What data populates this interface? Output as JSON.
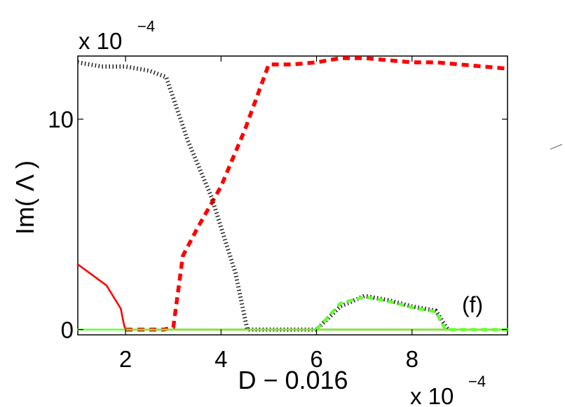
{
  "chart_data": {
    "type": "line",
    "title": "",
    "xlabel": "D − 0.016",
    "ylabel": "Im( Λ )",
    "x_scale_label": "x 10",
    "x_scale_exp": "−4",
    "y_scale_label": "x 10",
    "y_scale_exp": "−4",
    "panel_label": "(f)",
    "xlim": [
      1,
      10
    ],
    "ylim": [
      -0.25,
      13
    ],
    "xticks": [
      2,
      4,
      6,
      8
    ],
    "xtick_labels": [
      "2",
      "4",
      "6",
      "8"
    ],
    "yticks": [
      0,
      10
    ],
    "ytick_labels": [
      "0",
      "10"
    ],
    "grid": false,
    "series": [
      {
        "style": "thick-dashed",
        "color": "#ff0000",
        "x": [
          2.0,
          2.2,
          2.5,
          2.8,
          3.0,
          3.2,
          3.5,
          4.0,
          4.5,
          5.0,
          5.5,
          6.0,
          6.5,
          7.0,
          7.5,
          8.0,
          8.5,
          9.0,
          9.5,
          10.0
        ],
        "y": [
          0.0,
          0.0,
          0.0,
          0.0,
          0.1,
          3.5,
          4.8,
          6.8,
          9.5,
          12.6,
          12.6,
          12.7,
          12.9,
          12.9,
          12.8,
          12.7,
          12.7,
          12.6,
          12.5,
          12.4
        ]
      },
      {
        "style": "dotted",
        "color": "#222222",
        "x": [
          1.0,
          1.5,
          2.0,
          2.5,
          2.85,
          3.3,
          3.8,
          4.3,
          4.55,
          5.0,
          5.5,
          6.0,
          6.5,
          7.0,
          7.5,
          8.0,
          8.5,
          8.75
        ],
        "y": [
          12.7,
          12.5,
          12.5,
          12.3,
          12.0,
          9.0,
          6.3,
          2.7,
          0.0,
          0.0,
          0.0,
          0.0,
          1.1,
          1.6,
          1.4,
          1.1,
          0.9,
          0.0
        ]
      },
      {
        "style": "solid",
        "color": "#ff0000",
        "x": [
          1.0,
          1.6,
          1.9,
          1.97,
          2.0,
          3.0,
          4.0,
          5.0,
          6.0,
          7.0,
          8.0,
          9.0,
          10.0
        ],
        "y": [
          3.1,
          2.1,
          1.0,
          0.2,
          0.0,
          0.0,
          0.0,
          0.0,
          0.0,
          0.0,
          0.0,
          0.0,
          0.0
        ]
      },
      {
        "style": "solid",
        "color": "#66ff33",
        "x": [
          1.0,
          10.0
        ],
        "y": [
          0.0,
          0.0
        ]
      },
      {
        "style": "dashed",
        "color": "#66ff33",
        "x": [
          6.0,
          6.5,
          7.0,
          7.5,
          8.0,
          8.5,
          8.7,
          9.0,
          9.5,
          10.0
        ],
        "y": [
          0.0,
          1.25,
          1.55,
          1.35,
          1.05,
          0.85,
          0.0,
          0.0,
          0.0,
          0.0
        ]
      }
    ]
  }
}
